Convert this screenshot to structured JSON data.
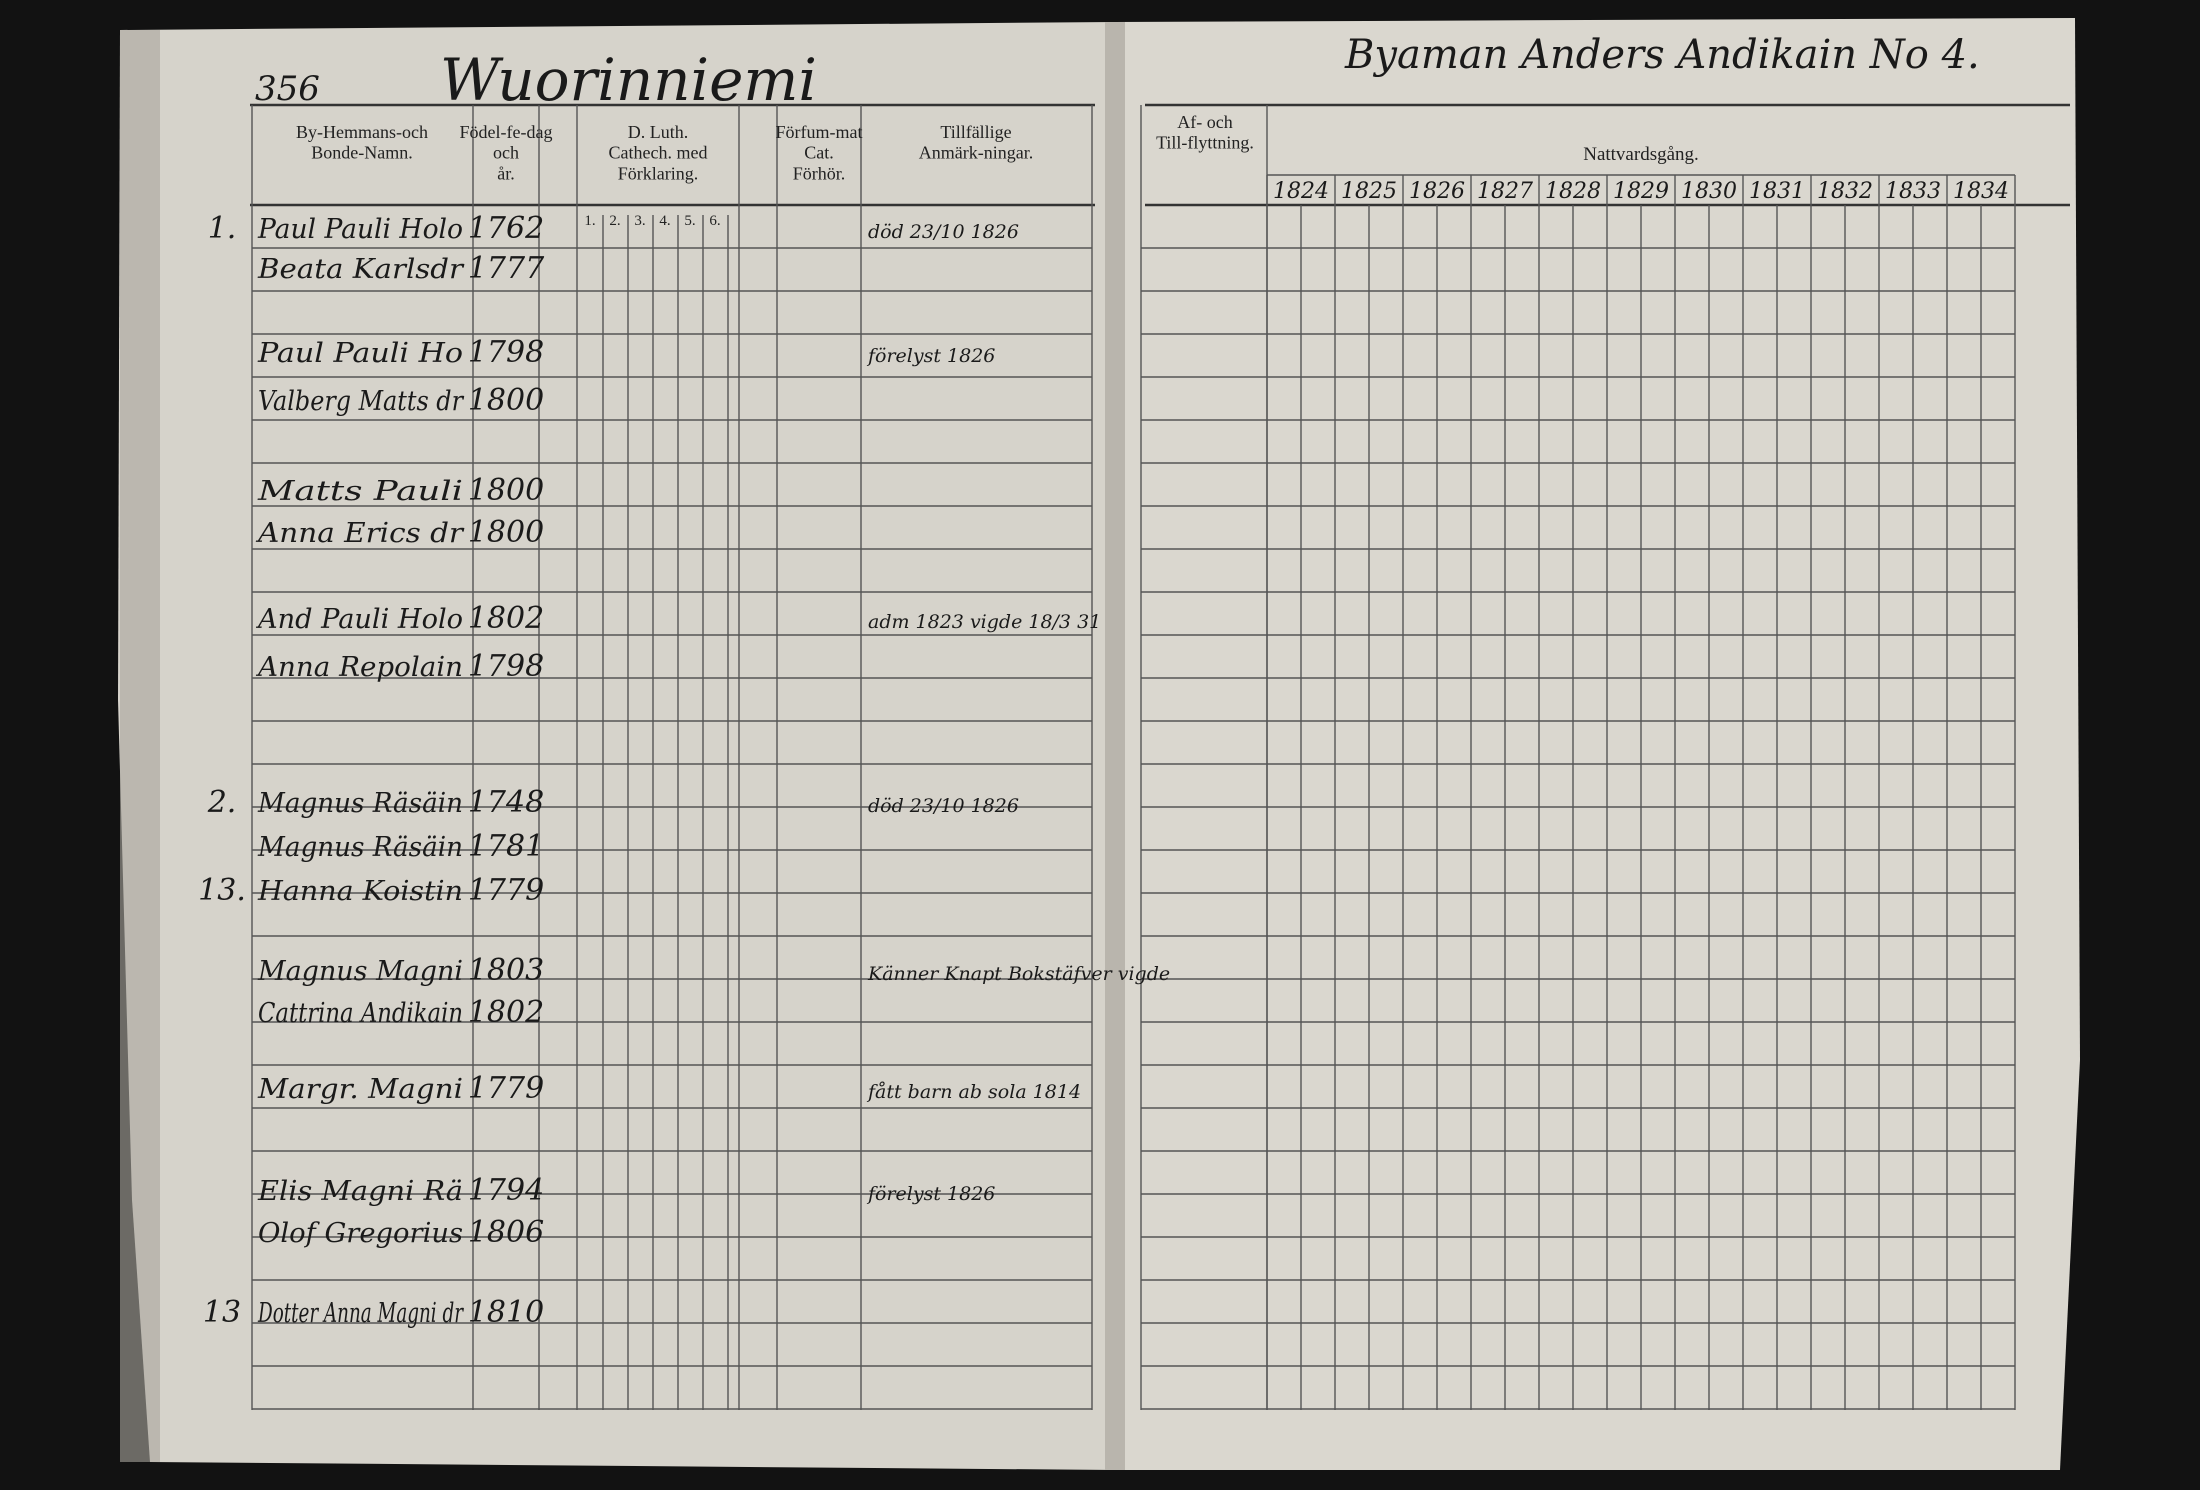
{
  "left_page": {
    "page_number": "356",
    "village": "Wuorinniemi",
    "columns": [
      "By-Hemmans-och Bonde-Namn.",
      "Födel-fe-dag och år.",
      "D. Luth. Cathech. med Förklaring.",
      "Förfum-mat Cat. Förhör.",
      "Tillfällige Anmärk-ningar."
    ],
    "catechism_parts": [
      "1.",
      "2.",
      "3.",
      "4.",
      "5.",
      "6."
    ]
  },
  "right_page": {
    "header": "Byaman Anders Andikain No 4.",
    "columns": [
      "Af- och Till-flyttning.",
      "Nattvardsgång."
    ],
    "years": [
      "1824",
      "1825",
      "1826",
      "1827",
      "1828",
      "1829",
      "1830",
      "1831",
      "1832",
      "1833",
      "1834"
    ]
  },
  "rows": [
    {
      "no": "1.",
      "name": "Paul Pauli Holo",
      "born": "1762",
      "note": "död 23/10 1826"
    },
    {
      "name": "Beata Karlsdr",
      "born": "1777"
    },
    {
      "name": "Paul Pauli Ho",
      "born": "1798",
      "note": "förelyst 1826"
    },
    {
      "name": "Valberg Matts dr",
      "born": "1800"
    },
    {
      "name": "Matts Pauli",
      "born": "1800"
    },
    {
      "name": "Anna Erics dr",
      "born": "1800"
    },
    {
      "name": "And Pauli Holo",
      "born": "1802",
      "note": "adm 1823 vigde 18/3 31"
    },
    {
      "name": "Anna Repolain",
      "born": "1798"
    },
    {
      "no": "2.",
      "name": "Magnus Räsäin",
      "born": "1748",
      "note": "död 23/10 1826"
    },
    {
      "name": "Magnus Räsäin",
      "born": "1781"
    },
    {
      "no": "13.",
      "name": "Hanna Koistin",
      "born": "1779"
    },
    {
      "name": "Magnus Magni",
      "born": "1803",
      "note": "Känner Knapt Bokstäfver vigde"
    },
    {
      "name": "Cattrina Andikain",
      "born": "1802"
    },
    {
      "name": "Margr. Magni",
      "born": "1779",
      "note": "fått barn ab sola 1814"
    },
    {
      "name": "Elis Magni Rä",
      "born": "1794",
      "note": "förelyst 1826"
    },
    {
      "name": "Olof Gregorius",
      "born": "1806"
    },
    {
      "no": "13",
      "name": "Dotter Anna Magni dr",
      "born": "1810"
    }
  ]
}
